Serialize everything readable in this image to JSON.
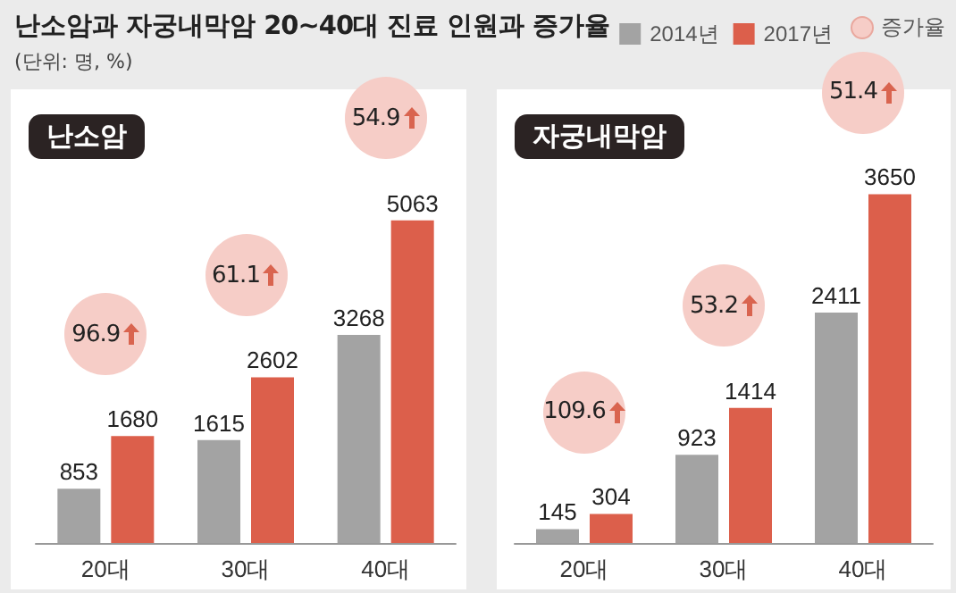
{
  "chart_data": [
    {
      "type": "bar",
      "title": "난소암",
      "categories": [
        "20대",
        "30대",
        "40대"
      ],
      "series": [
        {
          "name": "2014년",
          "color": "#a3a3a3",
          "values": [
            853,
            1615,
            3268
          ]
        },
        {
          "name": "2017년",
          "color": "#dc5f4b",
          "values": [
            1680,
            2602,
            5063
          ]
        }
      ],
      "data_labels": true,
      "legend": "top right",
      "annotations": [
        "난소암과 자궁내막암 20~40대 진료 인원과 증가율",
        "(단위: 명, %)",
        "증가율",
        "96.9",
        "61.1",
        "54.9"
      ]
    },
    {
      "type": "bar",
      "title": "자궁내막암",
      "categories": [
        "20대",
        "30대",
        "40대"
      ],
      "series": [
        {
          "color": "#a3a3a3",
          "values": [
            145,
            923,
            2411
          ]
        },
        {
          "color": "#dc5f4b",
          "values": [
            304,
            1414,
            3650
          ]
        }
      ],
      "data_labels": true,
      "annotations": [
        "109.6",
        "53.2",
        "51.4"
      ]
    }
  ]
}
